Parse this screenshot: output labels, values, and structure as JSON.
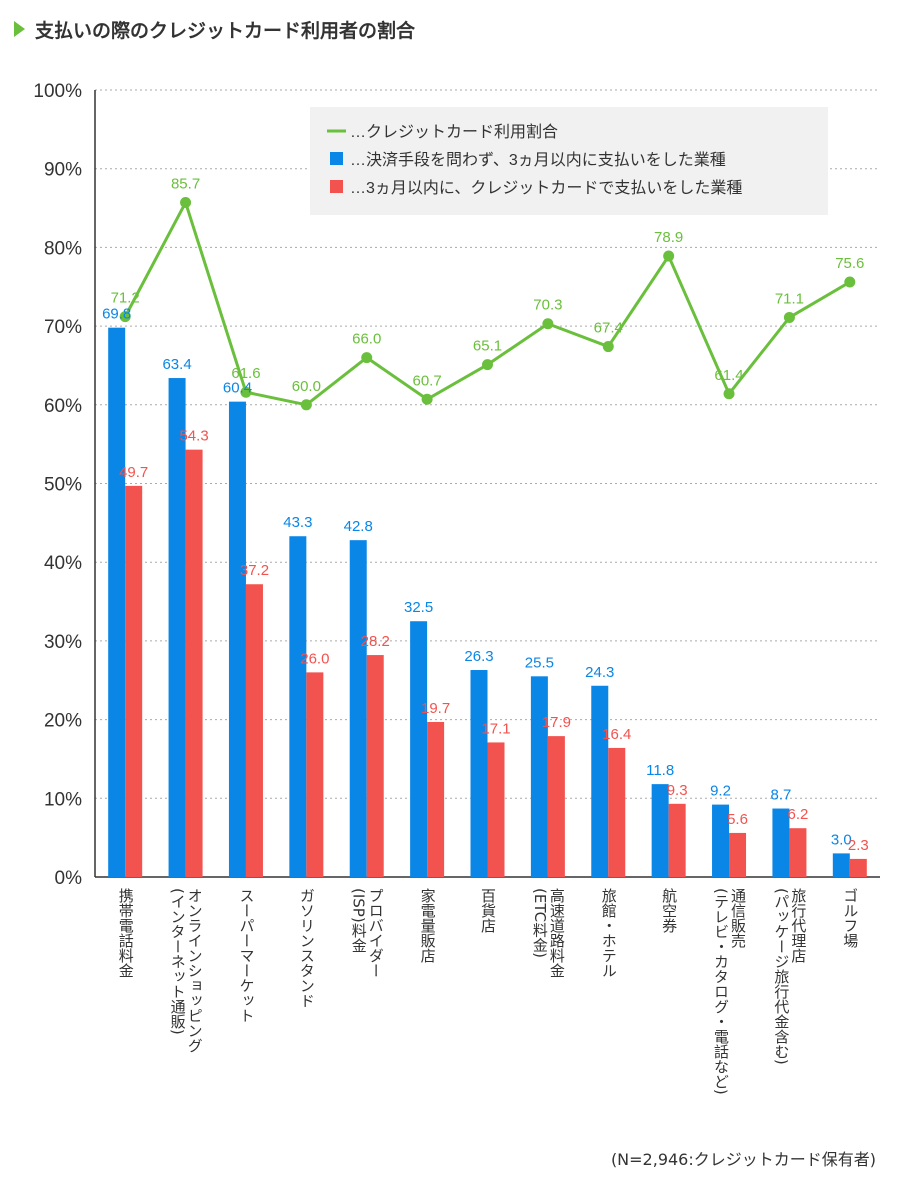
{
  "title": "支払いの際のクレジットカード利用者の割合",
  "footnote": "(N=2,946:クレジットカード保有者)",
  "chart_data": {
    "type": "bar",
    "title": "支払いの際のクレジットカード利用者の割合",
    "xlabel": "",
    "ylabel": "",
    "ylim": [
      0,
      100
    ],
    "y_ticks": [
      "0%",
      "10%",
      "20%",
      "30%",
      "40%",
      "50%",
      "60%",
      "70%",
      "80%",
      "90%",
      "100%"
    ],
    "grid": true,
    "legend_position": "top-right",
    "categories": [
      "携帯電話料金",
      "オンラインショッピング\n(インターネット通販)",
      "スーパーマーケット",
      "ガソリンスタンド",
      "プロバイダー\n(ISP)料金",
      "家電量販店",
      "百貨店",
      "高速道路料金\n(ETC料金)",
      "旅館・ホテル",
      "航空券",
      "通信販売\n(テレビ・カタログ・電話など)",
      "旅行代理店\n(パッケージ旅行代金含む)",
      "ゴルフ場"
    ],
    "series": [
      {
        "name": "…決済手段を問わず、3ヵ月以内に支払いをした業種",
        "type": "bar",
        "color": "#0a86e6",
        "values": [
          69.8,
          63.4,
          60.4,
          43.3,
          42.8,
          32.5,
          26.3,
          25.5,
          24.3,
          11.8,
          9.2,
          8.7,
          3.0
        ],
        "labels": [
          "69.8",
          "63.4",
          "60.4",
          "43.3",
          "42.8",
          "32.5",
          "26.3",
          "25.5",
          "24.3",
          "11.8",
          "9.2",
          "8.7",
          "3.0"
        ]
      },
      {
        "name": "…3ヵ月以内に、クレジットカードで支払いをした業種",
        "type": "bar",
        "color": "#f2534f",
        "values": [
          49.7,
          54.3,
          37.2,
          26.0,
          28.2,
          19.7,
          17.1,
          17.9,
          16.4,
          9.3,
          5.6,
          6.2,
          2.3
        ],
        "labels": [
          "49.7",
          "54.3",
          "37.2",
          "26.0",
          "28.2",
          "19.7",
          "17.1",
          "17.9",
          "16.4",
          "9.3",
          "5.6",
          "6.2",
          "2.3"
        ]
      },
      {
        "name": "…クレジットカード利用割合",
        "type": "line",
        "color": "#6abf3c",
        "values": [
          71.2,
          85.7,
          61.6,
          60.0,
          66.0,
          60.7,
          65.1,
          70.3,
          67.4,
          78.9,
          61.4,
          71.1,
          75.6
        ],
        "labels": [
          "71.2",
          "85.7",
          "61.6",
          "60.0",
          "66.0",
          "60.7",
          "65.1",
          "70.3",
          "67.4",
          "78.9",
          "61.4",
          "71.1",
          "75.6"
        ]
      }
    ],
    "legend_order": [
      2,
      0,
      1
    ]
  }
}
